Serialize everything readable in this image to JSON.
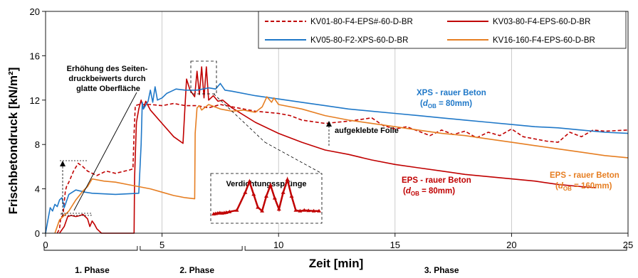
{
  "chart_data": {
    "type": "line",
    "xlabel": "Zeit [min]",
    "ylabel": "Frischbetondruck [kN/m²]",
    "xlim": [
      0,
      25
    ],
    "ylim": [
      0,
      20
    ],
    "xticks": [
      0,
      5,
      10,
      15,
      20,
      25
    ],
    "yticks": [
      0,
      4,
      8,
      12,
      16,
      20
    ],
    "grid": "vertical",
    "legend_position": "top-right",
    "phases": [
      "1. Phase",
      "2. Phase",
      "3. Phase"
    ],
    "series": [
      {
        "name": "KV01-80-F4-EPS#-60-D-BR",
        "color": "#c00000",
        "dash": "dashed",
        "x": [
          0.5,
          0.6,
          0.65,
          0.75,
          0.8,
          0.85,
          0.9,
          1.0,
          1.2,
          1.4,
          1.6,
          1.8,
          2.2,
          2.6,
          3.0,
          3.4,
          3.6,
          3.75,
          3.8,
          3.85,
          4.0,
          4.5,
          5.0,
          5.5,
          6.0,
          6.5,
          7.0,
          7.5,
          8.0,
          9.0,
          10.0,
          10.5,
          11.0,
          12.0,
          13.0,
          14.0,
          14.5,
          15.0,
          15.5,
          16.0,
          16.5,
          17.0,
          17.5,
          18.0,
          18.5,
          19.0,
          19.5,
          20.0,
          20.5,
          21.0,
          21.5,
          22.0,
          22.5,
          23.0,
          23.5,
          24.0,
          25.0
        ],
        "y": [
          0.0,
          0.4,
          1.4,
          1.6,
          2.8,
          3.8,
          4.2,
          4.6,
          5.6,
          6.3,
          6.0,
          5.6,
          5.2,
          5.6,
          5.4,
          5.6,
          5.7,
          5.8,
          9.0,
          11.5,
          11.6,
          11.6,
          11.5,
          11.7,
          11.5,
          11.5,
          11.3,
          11.6,
          11.4,
          11.0,
          10.8,
          10.6,
          10.2,
          9.9,
          10.1,
          10.4,
          9.7,
          9.4,
          9.6,
          9.2,
          8.8,
          9.3,
          8.9,
          9.2,
          8.6,
          9.1,
          8.8,
          9.4,
          8.7,
          8.5,
          8.3,
          8.2,
          9.1,
          8.7,
          9.3,
          9.2,
          9.3
        ]
      },
      {
        "name": "KV03-80-F4-EPS-60-D-BR",
        "color": "#c00000",
        "dash": "solid",
        "x": [
          0.6,
          0.8,
          0.95,
          1.1,
          1.3,
          1.5,
          1.6,
          1.8,
          1.9,
          2.0,
          2.1,
          2.2,
          2.4,
          3.8,
          3.82,
          3.9,
          4.0,
          4.1,
          4.2,
          4.3,
          4.5,
          5.0,
          5.5,
          5.9,
          6.0,
          6.05,
          6.2,
          6.4,
          6.5,
          6.6,
          6.7,
          6.8,
          6.9,
          7.0,
          7.2,
          7.4,
          7.6,
          8.0,
          9.0,
          10.0,
          11.0,
          12.0,
          13.0,
          14.0,
          15.0,
          16.0,
          17.0,
          18.0,
          19.0,
          20.0,
          21.0,
          22.0,
          23.0,
          23.6
        ],
        "y": [
          0.0,
          0.6,
          1.5,
          1.6,
          1.5,
          1.6,
          1.7,
          1.3,
          0.6,
          1.1,
          0.8,
          0.4,
          0.0,
          0.0,
          5.0,
          10.0,
          11.2,
          12.0,
          11.2,
          11.9,
          11.1,
          9.9,
          8.7,
          8.1,
          12.0,
          13.9,
          12.9,
          12.3,
          14.6,
          12.5,
          15.0,
          12.2,
          15.0,
          12.0,
          12.4,
          11.9,
          12.0,
          11.3,
          10.0,
          9.0,
          8.2,
          7.5,
          7.1,
          6.6,
          6.2,
          5.9,
          5.6,
          5.3,
          5.1,
          4.9,
          4.7,
          4.4,
          4.2,
          4.1
        ]
      },
      {
        "name": "KV05-80-F2-XPS-60-D-BR",
        "color": "#1f78c8",
        "dash": "solid",
        "x": [
          0.0,
          0.1,
          0.2,
          0.3,
          0.4,
          0.5,
          0.6,
          0.7,
          0.8,
          1.0,
          1.3,
          1.7,
          2.0,
          3.0,
          4.0,
          4.1,
          4.15,
          4.2,
          4.4,
          4.5,
          4.6,
          4.7,
          4.8,
          5.0,
          5.2,
          5.4,
          5.6,
          6.0,
          6.5,
          7.0,
          7.3,
          7.5,
          7.7,
          8.0,
          9.0,
          10.0,
          11.0,
          12.0,
          13.0,
          14.0,
          15.0,
          16.0,
          17.0,
          18.0,
          19.0,
          20.0,
          21.0,
          22.0,
          23.0,
          24.0,
          25.0
        ],
        "y": [
          0.0,
          1.2,
          2.3,
          2.0,
          2.6,
          2.4,
          3.0,
          3.2,
          2.3,
          3.5,
          3.9,
          3.7,
          3.6,
          3.5,
          3.6,
          8.0,
          11.8,
          11.2,
          11.9,
          12.9,
          11.8,
          13.2,
          12.0,
          12.2,
          12.6,
          12.8,
          13.0,
          12.9,
          12.9,
          13.1,
          13.0,
          13.5,
          12.9,
          12.8,
          12.4,
          12.1,
          11.8,
          11.5,
          11.2,
          11.0,
          10.8,
          10.6,
          10.4,
          10.2,
          10.0,
          9.8,
          9.6,
          9.5,
          9.3,
          9.1,
          9.0
        ]
      },
      {
        "name": "KV16-160-F4-EPS-60-D-BR",
        "color": "#e67e22",
        "dash": "solid",
        "x": [
          0.4,
          0.6,
          0.8,
          1.0,
          1.3,
          1.6,
          1.8,
          2.0,
          2.5,
          3.0,
          3.5,
          4.0,
          4.5,
          5.0,
          5.5,
          6.0,
          6.4,
          6.42,
          6.5,
          6.6,
          6.7,
          7.0,
          7.5,
          8.0,
          8.5,
          9.0,
          9.3,
          9.5,
          9.7,
          9.8,
          10.0,
          11.0,
          12.0,
          13.0,
          14.0,
          15.0,
          16.0,
          17.0,
          18.0,
          19.0,
          20.0,
          21.0,
          22.0,
          23.0,
          24.0,
          25.0
        ],
        "y": [
          0.0,
          1.2,
          1.6,
          2.0,
          3.0,
          3.8,
          4.2,
          4.9,
          4.7,
          4.6,
          4.4,
          4.2,
          4.0,
          3.7,
          3.4,
          3.2,
          3.1,
          9.0,
          11.3,
          11.5,
          11.1,
          11.6,
          11.2,
          11.0,
          11.1,
          10.9,
          11.4,
          12.3,
          11.8,
          12.2,
          11.6,
          11.2,
          10.6,
          10.2,
          9.9,
          9.6,
          9.3,
          9.0,
          8.8,
          8.5,
          8.2,
          7.9,
          7.6,
          7.3,
          7.0,
          6.8
        ]
      }
    ],
    "annotations": {
      "seitendruck": "Erhöhung des Seiten-\ndruckbeiwerts durch\nglatte Oberfläche",
      "folie": "aufgeklebte Folie",
      "verdichtung": "Verdichtungssprünge",
      "xps_label": "XPS - rauer Beton",
      "xps_sub": "(dOB = 80mm)",
      "eps160_label": "EPS - rauer Beton",
      "eps160_sub": "(dOB = 160mm)",
      "eps80_label": "EPS - rauer Beton",
      "eps80_sub": "(dOB = 80mm)"
    }
  }
}
